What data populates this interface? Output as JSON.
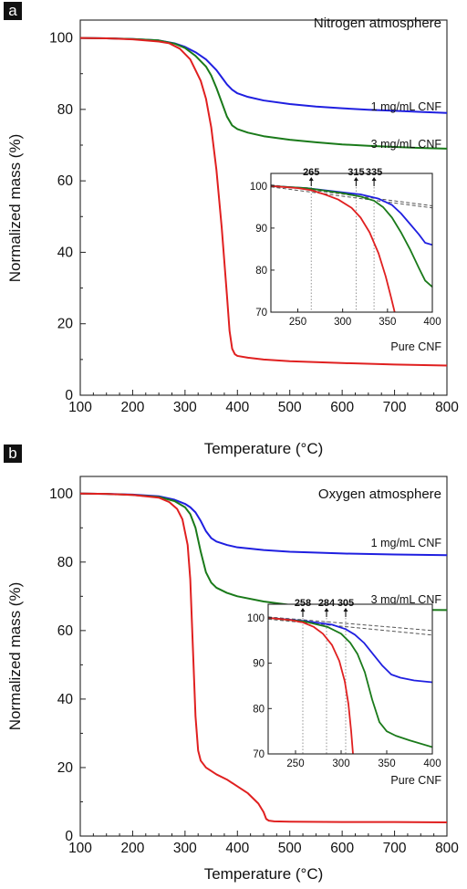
{
  "chart_data": [
    {
      "type": "line",
      "panel_label": "a",
      "annotation": "Nitrogen atmosphere",
      "xlabel": "Temperature (°C)",
      "ylabel": "Normalized mass (%)",
      "xlim": [
        100,
        800
      ],
      "ylim": [
        0,
        105
      ],
      "xticks": [
        "100",
        "200",
        "300",
        "400",
        "500",
        "600",
        "700",
        "800"
      ],
      "yticks": [
        "0",
        "20",
        "40",
        "60",
        "80",
        "100"
      ],
      "series": [
        {
          "name": "1 mg/mL CNF",
          "color": "#1f1fe0",
          "x": [
            100,
            150,
            200,
            250,
            280,
            300,
            320,
            340,
            360,
            370,
            380,
            390,
            400,
            420,
            450,
            500,
            550,
            600,
            650,
            700,
            750,
            800
          ],
          "y": [
            100,
            99.9,
            99.7,
            99.3,
            98.5,
            97.5,
            96,
            94,
            91,
            89,
            87,
            85.5,
            84.5,
            83.5,
            82.5,
            81.5,
            80.8,
            80.3,
            79.9,
            79.6,
            79.3,
            79
          ]
        },
        {
          "name": "3 mg/mL CNF",
          "color": "#1a7a1a",
          "x": [
            100,
            150,
            200,
            250,
            280,
            300,
            320,
            340,
            350,
            360,
            370,
            380,
            390,
            400,
            420,
            450,
            500,
            550,
            600,
            650,
            700,
            750,
            800
          ],
          "y": [
            100,
            99.9,
            99.7,
            99.3,
            98.4,
            97.2,
            95,
            92,
            89.5,
            86,
            82,
            78,
            75.5,
            74.5,
            73.5,
            72.5,
            71.5,
            70.8,
            70.2,
            69.8,
            69.5,
            69.2,
            69
          ]
        },
        {
          "name": "Pure CNF",
          "color": "#e02020",
          "x": [
            100,
            150,
            200,
            250,
            270,
            290,
            310,
            330,
            340,
            350,
            360,
            370,
            380,
            385,
            390,
            395,
            400,
            420,
            450,
            500,
            600,
            700,
            800
          ],
          "y": [
            100,
            99.9,
            99.6,
            99,
            98.5,
            97,
            94,
            88,
            83,
            75,
            63,
            47,
            28,
            18,
            13,
            11.5,
            11,
            10.5,
            10,
            9.5,
            9,
            8.6,
            8.3
          ]
        }
      ],
      "inset": {
        "xlim": [
          220,
          400
        ],
        "ylim": [
          70,
          103
        ],
        "xticks": [
          "250",
          "300",
          "350",
          "400"
        ],
        "yticks": [
          "70",
          "80",
          "90",
          "100"
        ],
        "onset_labels": [
          "265",
          "315",
          "335"
        ],
        "onset_values": [
          265,
          315,
          335
        ],
        "series": [
          {
            "name": "1 mg/mL CNF",
            "color": "#1f1fe0",
            "x": [
              220,
              260,
              300,
              320,
              340,
              355,
              365,
              375,
              385,
              392,
              400
            ],
            "y": [
              100,
              99.5,
              98.5,
              98,
              97,
              95.5,
              93.5,
              91,
              88.5,
              86.5,
              86
            ]
          },
          {
            "name": "3 mg/mL CNF",
            "color": "#1a7a1a",
            "x": [
              220,
              260,
              300,
              320,
              335,
              345,
              355,
              365,
              375,
              385,
              392,
              400
            ],
            "y": [
              100,
              99.5,
              98.3,
              97.5,
              96.5,
              95,
              92.5,
              89,
              85,
              80.5,
              77.5,
              76
            ]
          },
          {
            "name": "Pure CNF",
            "color": "#e02020",
            "x": [
              220,
              250,
              265,
              280,
              295,
              310,
              320,
              330,
              340,
              348,
              354,
              358
            ],
            "y": [
              100,
              99.5,
              99,
              98,
              96.8,
              94.8,
              92.5,
              89,
              84,
              78.5,
              73.5,
              70
            ]
          }
        ],
        "baselines": [
          {
            "x": [
              220,
              400
            ],
            "y": [
              100.3,
              95.3
            ]
          },
          {
            "x": [
              220,
              400
            ],
            "y": [
              99.8,
              94.8
            ]
          }
        ]
      }
    },
    {
      "type": "line",
      "panel_label": "b",
      "annotation": "Oxygen atmosphere",
      "xlabel": "Temperature (°C)",
      "ylabel": "Normalized mass (%)",
      "xlim": [
        100,
        800
      ],
      "ylim": [
        0,
        105
      ],
      "xticks": [
        "100",
        "200",
        "300",
        "400",
        "500",
        "600",
        "700",
        "800"
      ],
      "yticks": [
        "0",
        "20",
        "40",
        "60",
        "80",
        "100"
      ],
      "series": [
        {
          "name": "1 mg/mL CNF",
          "color": "#1f1fe0",
          "x": [
            100,
            150,
            200,
            250,
            280,
            300,
            310,
            320,
            330,
            340,
            350,
            360,
            380,
            400,
            450,
            500,
            600,
            700,
            800
          ],
          "y": [
            100,
            99.9,
            99.7,
            99.2,
            98.2,
            97,
            96,
            94.5,
            92,
            89,
            87,
            86,
            85,
            84.3,
            83.5,
            83,
            82.5,
            82.2,
            82
          ]
        },
        {
          "name": "3 mg/mL CNF",
          "color": "#1a7a1a",
          "x": [
            100,
            150,
            200,
            250,
            280,
            300,
            310,
            320,
            330,
            340,
            350,
            360,
            380,
            400,
            450,
            500,
            600,
            700,
            800
          ],
          "y": [
            100,
            99.9,
            99.6,
            99,
            97.8,
            96,
            94,
            90,
            83,
            77,
            74,
            72.5,
            71,
            70,
            68.5,
            67.5,
            66.5,
            66.1,
            66
          ]
        },
        {
          "name": "Pure CNF",
          "color": "#e02020",
          "x": [
            100,
            150,
            200,
            250,
            270,
            285,
            295,
            305,
            310,
            315,
            320,
            325,
            330,
            340,
            360,
            380,
            400,
            420,
            440,
            450,
            455,
            460,
            470,
            500,
            600,
            700,
            800
          ],
          "y": [
            100,
            99.9,
            99.6,
            98.8,
            97.5,
            95.5,
            92.5,
            85,
            75,
            55,
            35,
            25,
            22,
            20,
            18,
            16.5,
            14.5,
            12.5,
            9.5,
            7,
            5,
            4.5,
            4.3,
            4.2,
            4.1,
            4.1,
            4
          ]
        }
      ],
      "inset": {
        "xlim": [
          220,
          400
        ],
        "ylim": [
          70,
          103
        ],
        "xticks": [
          "250",
          "300",
          "350",
          "400"
        ],
        "yticks": [
          "70",
          "80",
          "90",
          "100"
        ],
        "onset_labels": [
          "258",
          "284",
          "305"
        ],
        "onset_values": [
          258,
          284,
          305
        ],
        "series": [
          {
            "name": "1 mg/mL CNF",
            "color": "#1f1fe0",
            "x": [
              220,
              260,
              290,
              305,
              315,
              325,
              335,
              345,
              355,
              365,
              380,
              400
            ],
            "y": [
              100,
              99.3,
              98.5,
              97.5,
              96.3,
              94.5,
              92,
              89.5,
              87.5,
              86.8,
              86.2,
              85.8
            ]
          },
          {
            "name": "3 mg/mL CNF",
            "color": "#1a7a1a",
            "x": [
              220,
              260,
              285,
              300,
              310,
              318,
              326,
              334,
              342,
              350,
              360,
              375,
              400
            ],
            "y": [
              100,
              99.2,
              98,
              96.5,
              94.5,
              92,
              88,
              82,
              77,
              75,
              74,
              73,
              71.5
            ]
          },
          {
            "name": "Pure CNF",
            "color": "#e02020",
            "x": [
              220,
              245,
              258,
              270,
              280,
              290,
              298,
              304,
              308,
              311,
              313
            ],
            "y": [
              100,
              99.5,
              99,
              98,
              96.5,
              94,
              90.5,
              86,
              81,
              75,
              70
            ]
          }
        ],
        "baselines": [
          {
            "x": [
              220,
              400
            ],
            "y": [
              100.2,
              97.2
            ]
          },
          {
            "x": [
              220,
              400
            ],
            "y": [
              99.7,
              96.2
            ]
          }
        ]
      }
    }
  ]
}
